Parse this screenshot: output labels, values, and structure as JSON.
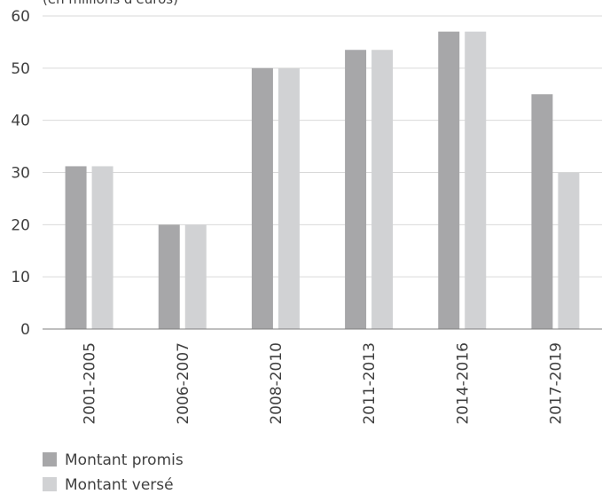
{
  "chart_data": {
    "type": "bar",
    "title": "",
    "unit_note": "(en millions d'euros)",
    "xlabel": "",
    "ylabel": "",
    "categories": [
      "2001-2005",
      "2006-2007",
      "2008-2010",
      "2011-2013",
      "2014-2016",
      "2017-2019"
    ],
    "series": [
      {
        "name": "Montant promis",
        "color": "#a7a7a9",
        "values": [
          31.2,
          20,
          50,
          53.5,
          57,
          45
        ]
      },
      {
        "name": "Montant versé",
        "color": "#d1d2d4",
        "values": [
          31.2,
          20,
          50,
          53.5,
          57,
          30
        ]
      }
    ],
    "ylim": [
      0,
      60
    ],
    "yticks": [
      0,
      10,
      20,
      30,
      40,
      50,
      60
    ],
    "grid": true,
    "legend_position": "bottom-left"
  }
}
